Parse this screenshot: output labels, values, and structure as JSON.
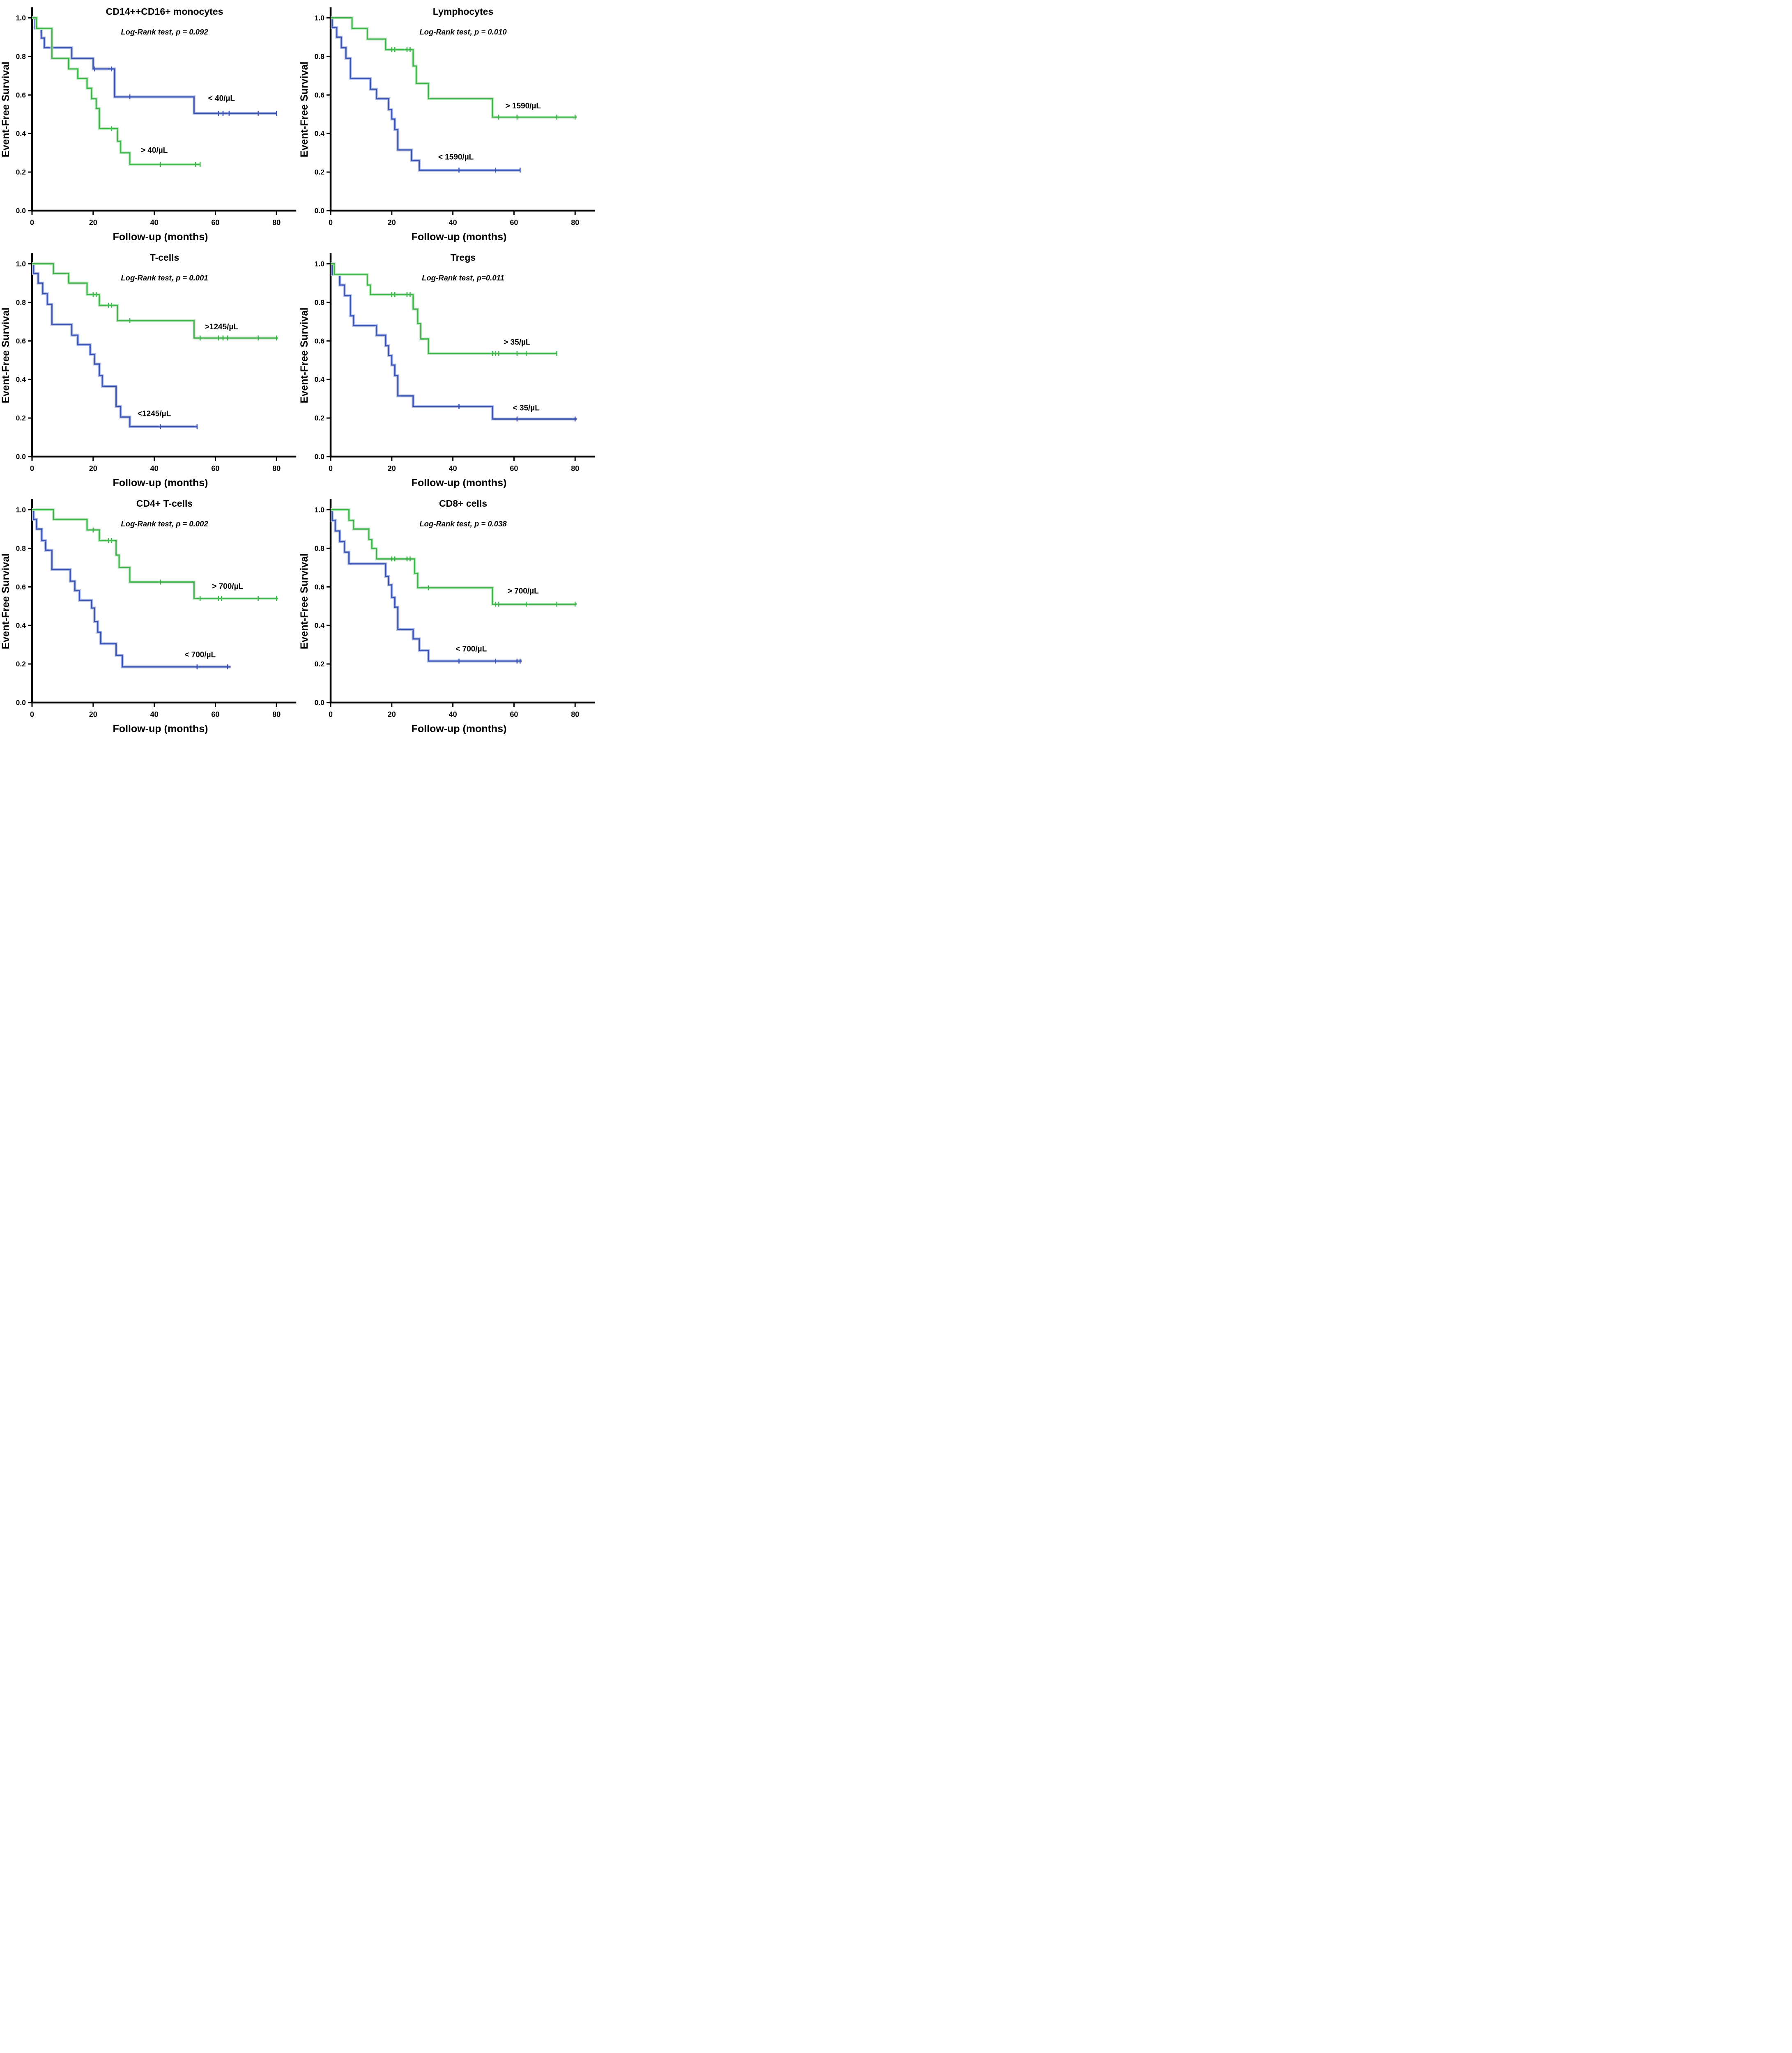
{
  "figure": {
    "ylabel": "Event-Free Survival",
    "xlabel": "Follow-up (months)",
    "x_ticks": [
      0,
      20,
      40,
      60,
      80
    ],
    "y_ticks": [
      "0.0",
      "0.2",
      "0.4",
      "0.6",
      "0.8",
      "1.0"
    ],
    "x_max": 84,
    "y_max": 1.05,
    "colors": {
      "blue": "#3a52b4",
      "blue_halo": "#b7c3e6",
      "green": "#3db54a",
      "green_halo": "#c8eacb",
      "axis": "#000000",
      "text": "#000000",
      "background": "#ffffff"
    }
  },
  "chart_data": [
    {
      "type": "line",
      "km_step": true,
      "title": "CD14++CD16+ monocytes",
      "subtitle": "Log-Rank test, p = 0.092",
      "xlabel": "Follow-up (months)",
      "ylabel": "Event-Free Survival",
      "xlim": [
        0,
        84
      ],
      "ylim": [
        0,
        1.05
      ],
      "series": [
        {
          "name": "< 40/µL",
          "color": "blue",
          "label_xy": [
            62,
            0.57
          ],
          "steps": [
            [
              0,
              1.0
            ],
            [
              1,
              0.945
            ],
            [
              3,
              0.895
            ],
            [
              4,
              0.845
            ],
            [
              13,
              0.79
            ],
            [
              20,
              0.735
            ],
            [
              27,
              0.59
            ],
            [
              53,
              0.505
            ]
          ],
          "end_x": 80,
          "censors": [
            [
              20.5,
              0.735
            ],
            [
              26,
              0.735
            ],
            [
              32,
              0.59
            ],
            [
              61,
              0.505
            ],
            [
              62.5,
              0.505
            ],
            [
              64.5,
              0.505
            ],
            [
              74,
              0.505
            ],
            [
              80,
              0.505
            ]
          ]
        },
        {
          "name": "> 40/µL",
          "color": "green",
          "label_xy": [
            40,
            0.3
          ],
          "steps": [
            [
              0,
              1.0
            ],
            [
              1.5,
              0.945
            ],
            [
              6.5,
              0.79
            ],
            [
              12,
              0.735
            ],
            [
              15,
              0.685
            ],
            [
              18,
              0.635
            ],
            [
              19.5,
              0.58
            ],
            [
              21,
              0.53
            ],
            [
              22,
              0.425
            ],
            [
              28,
              0.36
            ],
            [
              29,
              0.3
            ],
            [
              32,
              0.24
            ]
          ],
          "end_x": 55,
          "censors": [
            [
              26,
              0.425
            ],
            [
              42,
              0.24
            ],
            [
              53.5,
              0.24
            ],
            [
              55,
              0.24
            ]
          ]
        }
      ]
    },
    {
      "type": "line",
      "km_step": true,
      "title": "Lymphocytes",
      "subtitle": "Log-Rank test, p = 0.010",
      "xlabel": "Follow-up (months)",
      "ylabel": "Event-Free Survival",
      "xlim": [
        0,
        84
      ],
      "ylim": [
        0,
        1.05
      ],
      "series": [
        {
          "name": "> 1590/µL",
          "color": "green",
          "label_xy": [
            63,
            0.53
          ],
          "steps": [
            [
              0,
              1.0
            ],
            [
              7,
              0.945
            ],
            [
              12,
              0.89
            ],
            [
              18,
              0.835
            ],
            [
              27,
              0.75
            ],
            [
              28,
              0.66
            ],
            [
              32,
              0.58
            ],
            [
              53,
              0.485
            ]
          ],
          "end_x": 80.5,
          "censors": [
            [
              20,
              0.835
            ],
            [
              21,
              0.835
            ],
            [
              25,
              0.835
            ],
            [
              26,
              0.835
            ],
            [
              55,
              0.485
            ],
            [
              61,
              0.485
            ],
            [
              74,
              0.485
            ],
            [
              80,
              0.485
            ]
          ]
        },
        {
          "name": "< 1590/µL",
          "color": "blue",
          "label_xy": [
            41,
            0.265
          ],
          "steps": [
            [
              0,
              1.0
            ],
            [
              0.5,
              0.95
            ],
            [
              2,
              0.9
            ],
            [
              3.5,
              0.845
            ],
            [
              5,
              0.79
            ],
            [
              6.5,
              0.685
            ],
            [
              13,
              0.63
            ],
            [
              15,
              0.58
            ],
            [
              19,
              0.525
            ],
            [
              20,
              0.475
            ],
            [
              21,
              0.42
            ],
            [
              22,
              0.315
            ],
            [
              26.5,
              0.26
            ],
            [
              29,
              0.21
            ]
          ],
          "end_x": 62,
          "censors": [
            [
              42,
              0.21
            ],
            [
              54,
              0.21
            ],
            [
              62,
              0.21
            ]
          ]
        }
      ]
    },
    {
      "type": "line",
      "km_step": true,
      "title": "T-cells",
      "subtitle": "Log-Rank test, p = 0.001",
      "xlabel": "Follow-up (months)",
      "ylabel": "Event-Free Survival",
      "xlim": [
        0,
        84
      ],
      "ylim": [
        0,
        1.05
      ],
      "series": [
        {
          "name": ">1245/µL",
          "color": "green",
          "label_xy": [
            62,
            0.66
          ],
          "steps": [
            [
              0,
              1.0
            ],
            [
              7,
              0.95
            ],
            [
              12,
              0.9
            ],
            [
              18,
              0.84
            ],
            [
              22,
              0.785
            ],
            [
              28,
              0.705
            ],
            [
              53,
              0.615
            ]
          ],
          "end_x": 80.5,
          "censors": [
            [
              20,
              0.84
            ],
            [
              21,
              0.84
            ],
            [
              25,
              0.785
            ],
            [
              26,
              0.785
            ],
            [
              32,
              0.705
            ],
            [
              55,
              0.615
            ],
            [
              61,
              0.615
            ],
            [
              62.5,
              0.615
            ],
            [
              64,
              0.615
            ],
            [
              74,
              0.615
            ],
            [
              80,
              0.615
            ]
          ]
        },
        {
          "name": "<1245/µL",
          "color": "blue",
          "label_xy": [
            40,
            0.21
          ],
          "steps": [
            [
              0,
              1.0
            ],
            [
              0.5,
              0.95
            ],
            [
              2,
              0.9
            ],
            [
              3.5,
              0.845
            ],
            [
              5,
              0.79
            ],
            [
              6.5,
              0.685
            ],
            [
              13,
              0.63
            ],
            [
              15,
              0.58
            ],
            [
              19,
              0.53
            ],
            [
              20.5,
              0.48
            ],
            [
              22,
              0.42
            ],
            [
              23,
              0.365
            ],
            [
              27.5,
              0.26
            ],
            [
              29,
              0.205
            ],
            [
              32,
              0.155
            ]
          ],
          "end_x": 54,
          "censors": [
            [
              42,
              0.155
            ],
            [
              54,
              0.155
            ]
          ]
        }
      ]
    },
    {
      "type": "line",
      "km_step": true,
      "title": "Tregs",
      "subtitle": "Log-Rank test, p=0.011",
      "xlabel": "Follow-up (months)",
      "ylabel": "Event-Free Survival",
      "xlim": [
        0,
        84
      ],
      "ylim": [
        0,
        1.05
      ],
      "series": [
        {
          "name": "> 35/µL",
          "color": "green",
          "label_xy": [
            61,
            0.58
          ],
          "steps": [
            [
              0,
              1.0
            ],
            [
              1.2,
              0.945
            ],
            [
              12,
              0.89
            ],
            [
              13,
              0.84
            ],
            [
              27,
              0.765
            ],
            [
              28.5,
              0.69
            ],
            [
              29.5,
              0.61
            ],
            [
              32,
              0.535
            ]
          ],
          "end_x": 74,
          "censors": [
            [
              20,
              0.84
            ],
            [
              21,
              0.84
            ],
            [
              25,
              0.84
            ],
            [
              26,
              0.84
            ],
            [
              53,
              0.535
            ],
            [
              54,
              0.535
            ],
            [
              55,
              0.535
            ],
            [
              61,
              0.535
            ],
            [
              64,
              0.535
            ],
            [
              74,
              0.535
            ]
          ]
        },
        {
          "name": "< 35/µL",
          "color": "blue",
          "label_xy": [
            64,
            0.24
          ],
          "steps": [
            [
              0,
              1.0
            ],
            [
              0.5,
              0.945
            ],
            [
              3,
              0.89
            ],
            [
              4.5,
              0.835
            ],
            [
              6.5,
              0.73
            ],
            [
              7.5,
              0.68
            ],
            [
              15,
              0.63
            ],
            [
              18,
              0.575
            ],
            [
              19,
              0.525
            ],
            [
              20,
              0.475
            ],
            [
              21,
              0.42
            ],
            [
              22,
              0.315
            ],
            [
              27,
              0.26
            ],
            [
              53,
              0.195
            ]
          ],
          "end_x": 80.5,
          "censors": [
            [
              42,
              0.26
            ],
            [
              61,
              0.195
            ],
            [
              80,
              0.195
            ]
          ]
        }
      ]
    },
    {
      "type": "line",
      "km_step": true,
      "title": "CD4+ T-cells",
      "subtitle": "Log-Rank test, p = 0.002",
      "xlabel": "Follow-up (months)",
      "ylabel": "Event-Free Survival",
      "xlim": [
        0,
        84
      ],
      "ylim": [
        0,
        1.05
      ],
      "series": [
        {
          "name": "> 700/µL",
          "color": "green",
          "label_xy": [
            64,
            0.59
          ],
          "steps": [
            [
              0,
              1.0
            ],
            [
              7,
              0.95
            ],
            [
              18,
              0.895
            ],
            [
              22,
              0.84
            ],
            [
              27.5,
              0.765
            ],
            [
              28.5,
              0.7
            ],
            [
              32,
              0.625
            ],
            [
              53,
              0.54
            ]
          ],
          "end_x": 80.5,
          "censors": [
            [
              20,
              0.895
            ],
            [
              25,
              0.84
            ],
            [
              26,
              0.84
            ],
            [
              42,
              0.625
            ],
            [
              55,
              0.54
            ],
            [
              61,
              0.54
            ],
            [
              62,
              0.54
            ],
            [
              74,
              0.54
            ],
            [
              80,
              0.54
            ]
          ]
        },
        {
          "name": "< 700/µL",
          "color": "blue",
          "label_xy": [
            55,
            0.235
          ],
          "steps": [
            [
              0,
              1.0
            ],
            [
              0.5,
              0.95
            ],
            [
              1.5,
              0.9
            ],
            [
              3.2,
              0.84
            ],
            [
              4.5,
              0.79
            ],
            [
              6.5,
              0.69
            ],
            [
              12.5,
              0.63
            ],
            [
              14,
              0.58
            ],
            [
              15.5,
              0.53
            ],
            [
              19.5,
              0.49
            ],
            [
              20.5,
              0.42
            ],
            [
              21.5,
              0.365
            ],
            [
              22.5,
              0.305
            ],
            [
              27.5,
              0.245
            ],
            [
              29.5,
              0.185
            ]
          ],
          "end_x": 65,
          "censors": [
            [
              54,
              0.185
            ],
            [
              64,
              0.185
            ]
          ]
        }
      ]
    },
    {
      "type": "line",
      "km_step": true,
      "title": "CD8+ cells",
      "subtitle": "Log-Rank test, p = 0.038",
      "xlabel": "Follow-up (months)",
      "ylabel": "Event-Free Survival",
      "xlim": [
        0,
        84
      ],
      "ylim": [
        0,
        1.05
      ],
      "series": [
        {
          "name": "> 700/µL",
          "color": "green",
          "label_xy": [
            63,
            0.565
          ],
          "steps": [
            [
              0,
              1.0
            ],
            [
              6,
              0.945
            ],
            [
              7.5,
              0.9
            ],
            [
              12.5,
              0.845
            ],
            [
              13.5,
              0.8
            ],
            [
              15,
              0.745
            ],
            [
              27.5,
              0.67
            ],
            [
              28.5,
              0.595
            ],
            [
              53,
              0.51
            ]
          ],
          "end_x": 80.5,
          "censors": [
            [
              20,
              0.745
            ],
            [
              21,
              0.745
            ],
            [
              25,
              0.745
            ],
            [
              26,
              0.745
            ],
            [
              32,
              0.595
            ],
            [
              54,
              0.51
            ],
            [
              55,
              0.51
            ],
            [
              64,
              0.51
            ],
            [
              74,
              0.51
            ],
            [
              80,
              0.51
            ]
          ]
        },
        {
          "name": "< 700/µL",
          "color": "blue",
          "label_xy": [
            46,
            0.265
          ],
          "steps": [
            [
              0,
              1.0
            ],
            [
              0.5,
              0.945
            ],
            [
              1.5,
              0.89
            ],
            [
              3,
              0.835
            ],
            [
              4.5,
              0.78
            ],
            [
              6,
              0.72
            ],
            [
              18,
              0.655
            ],
            [
              19,
              0.61
            ],
            [
              20,
              0.545
            ],
            [
              21,
              0.495
            ],
            [
              22,
              0.38
            ],
            [
              27,
              0.33
            ],
            [
              29,
              0.27
            ],
            [
              32,
              0.215
            ]
          ],
          "end_x": 62.5,
          "censors": [
            [
              42,
              0.215
            ],
            [
              54,
              0.215
            ],
            [
              61,
              0.215
            ],
            [
              62,
              0.215
            ]
          ]
        }
      ]
    }
  ]
}
